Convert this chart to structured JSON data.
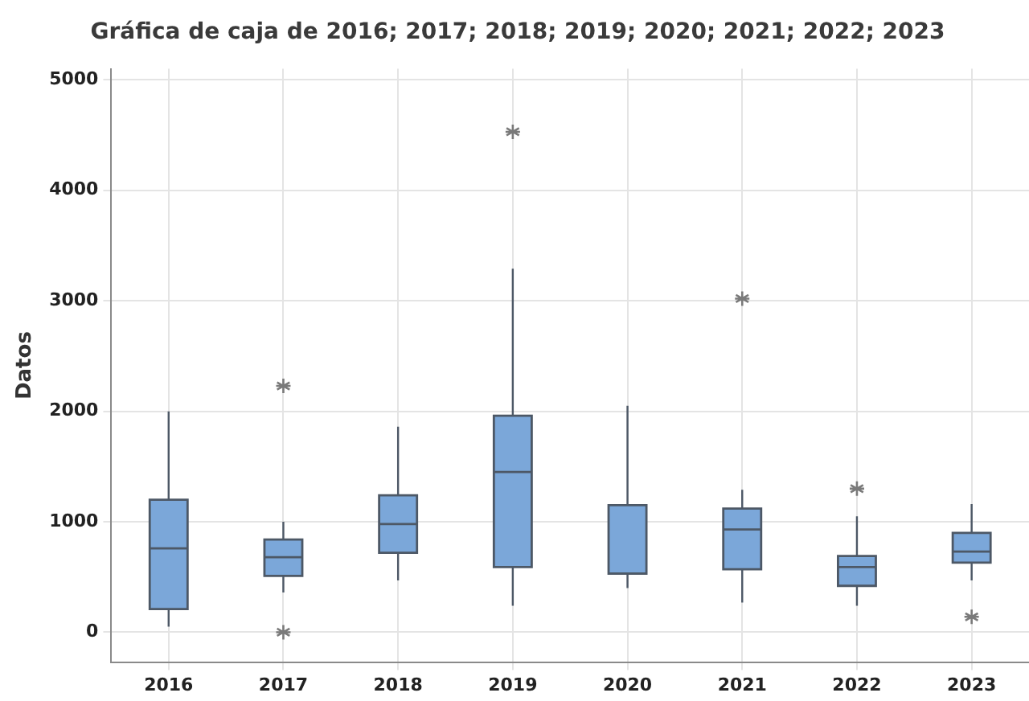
{
  "chart_data": {
    "type": "box",
    "title": "Gráfica de caja de 2016; 2017; 2018; 2019; 2020; 2021; 2022; 2023",
    "ylabel": "Datos",
    "categories": [
      "2016",
      "2017",
      "2018",
      "2019",
      "2020",
      "2021",
      "2022",
      "2023"
    ],
    "color": "#7ba7d9",
    "ylim": [
      -270,
      5100
    ],
    "yticks": [
      0,
      1000,
      2000,
      3000,
      4000,
      5000
    ],
    "grid": true,
    "legend": false,
    "marker": "star",
    "boxes": [
      {
        "low": 50,
        "q1": 210,
        "median": 760,
        "q3": 1200,
        "high": 2000
      },
      {
        "low": 360,
        "q1": 510,
        "median": 680,
        "q3": 840,
        "high": 1000,
        "outliers": [
          2230,
          0
        ]
      },
      {
        "low": 470,
        "q1": 720,
        "median": 980,
        "q3": 1240,
        "high": 1860
      },
      {
        "low": 240,
        "q1": 590,
        "median": 1450,
        "q3": 1960,
        "high": 3290,
        "outliers": [
          4530
        ]
      },
      {
        "low": 400,
        "q1": 530,
        "median": 530,
        "q3": 1150,
        "high": 2050
      },
      {
        "low": 270,
        "q1": 570,
        "median": 930,
        "q3": 1120,
        "high": 1290,
        "outliers": [
          3020
        ]
      },
      {
        "low": 240,
        "q1": 420,
        "median": 590,
        "q3": 690,
        "high": 1050,
        "outliers": [
          1300
        ]
      },
      {
        "low": 470,
        "q1": 630,
        "median": 730,
        "q3": 900,
        "high": 1160,
        "outliers": [
          140
        ]
      }
    ]
  }
}
